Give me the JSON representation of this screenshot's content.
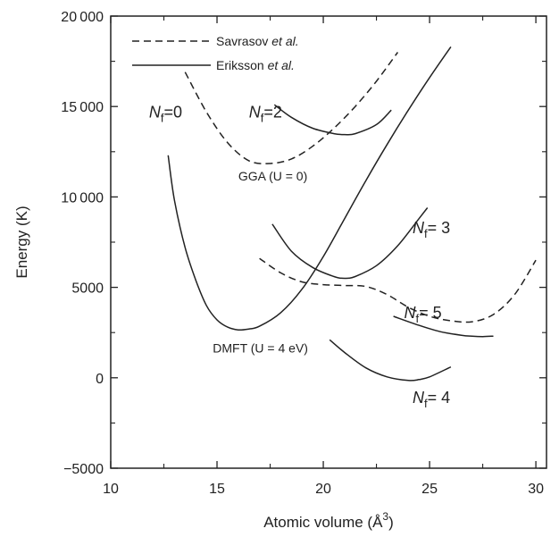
{
  "chart_data": {
    "type": "line",
    "title": "",
    "xlabel": "Atomic volume (Å3)",
    "ylabel": "Energy (K)",
    "xlim": [
      10,
      30.5
    ],
    "ylim": [
      -5000,
      20000
    ],
    "x_ticks": [
      10,
      15,
      20,
      25,
      30
    ],
    "y_ticks": [
      -5000,
      0,
      5000,
      10000,
      15000,
      20000
    ],
    "y_tick_labels": [
      "−5000",
      "0",
      "5000",
      "10 000",
      "15 000",
      "20 000"
    ],
    "grid": false,
    "legend_position": "top-left",
    "legend": [
      {
        "name": "Savrasov et al.",
        "style": "dashed"
      },
      {
        "name": "Eriksson et al.",
        "style": "solid"
      }
    ],
    "series": [
      {
        "name": "Savrasov et al.",
        "style": "dashed",
        "curves": [
          {
            "label": "GGA (U = 0)",
            "x": [
              13.5,
              14.5,
              15.5,
              16.5,
              17.5,
              18.5,
              19.5,
              20.5,
              21.5,
              22.5,
              23.5
            ],
            "y": [
              16900,
              14700,
              13000,
              12000,
              11850,
              12100,
              12800,
              13800,
              15000,
              16400,
              18000
            ]
          },
          {
            "label": "DMFT (U = 4 eV)",
            "x": [
              17.0,
              18.0,
              19.0,
              20.0,
              21.0,
              22.0,
              23.0,
              24.0,
              25.0,
              26.0,
              27.0,
              28.0,
              29.0,
              30.0
            ],
            "y": [
              6600,
              5800,
              5300,
              5150,
              5100,
              5050,
              4600,
              3900,
              3400,
              3150,
              3100,
              3500,
              4600,
              6500
            ]
          }
        ]
      },
      {
        "name": "Eriksson et al.",
        "style": "solid",
        "curves": [
          {
            "label": "Nf=0",
            "x": [
              12.7,
              13.0,
              13.5,
              14.0,
              14.5,
              15.0,
              15.5,
              16.0,
              16.5,
              17.0,
              18.0,
              19.0,
              20.0,
              21.0,
              22.0,
              23.0,
              24.0,
              25.0,
              26.0
            ],
            "y": [
              12300,
              9800,
              7200,
              5400,
              4000,
              3200,
              2800,
              2650,
              2700,
              2850,
              3600,
              4900,
              6700,
              8800,
              10900,
              12900,
              14800,
              16600,
              18300
            ]
          },
          {
            "label": "Nf=2",
            "x": [
              17.7,
              18.5,
              19.5,
              20.5,
              21.0,
              21.5,
              22.5,
              23.2
            ],
            "y": [
              15100,
              14400,
              13800,
              13500,
              13450,
              13500,
              14000,
              14800
            ]
          },
          {
            "label": "Nf=3",
            "x": [
              17.6,
              18.5,
              19.5,
              20.5,
              21.0,
              21.5,
              22.5,
              23.5,
              24.5,
              24.9
            ],
            "y": [
              8500,
              7000,
              6100,
              5600,
              5500,
              5600,
              6200,
              7300,
              8800,
              9400
            ]
          },
          {
            "label": "Nf=5",
            "x": [
              23.3,
              24.5,
              25.5,
              26.5,
              27.0,
              27.5,
              28.0
            ],
            "y": [
              3400,
              2900,
              2550,
              2350,
              2300,
              2280,
              2300
            ]
          },
          {
            "label": "Nf=4",
            "x": [
              20.3,
              21.0,
              22.0,
              23.0,
              24.0,
              24.5,
              25.0,
              26.0
            ],
            "y": [
              2100,
              1400,
              550,
              50,
              -150,
              -100,
              50,
              600
            ]
          }
        ]
      }
    ],
    "annotations": [
      {
        "id": "nf0",
        "main": "N",
        "sub": "f",
        "text": "=0",
        "x": 11.8,
        "y": 14400
      },
      {
        "id": "nf2",
        "main": "N",
        "sub": "f",
        "text": "=2",
        "x": 16.5,
        "y": 14400
      },
      {
        "id": "nf3",
        "main": "N",
        "sub": "f",
        "text": "= 3",
        "x": 24.2,
        "y": 8000
      },
      {
        "id": "nf5",
        "main": "N",
        "sub": "f",
        "text": "= 5",
        "x": 23.8,
        "y": 3300
      },
      {
        "id": "nf4",
        "main": "N",
        "sub": "f",
        "text": "= 4",
        "x": 24.2,
        "y": -1400
      },
      {
        "id": "gga",
        "text": "GGA (U = 0)",
        "x": 16.0,
        "y": 10900
      },
      {
        "id": "dmft",
        "text": "DMFT (U = 4 eV)",
        "x": 14.8,
        "y": 1400
      }
    ]
  }
}
